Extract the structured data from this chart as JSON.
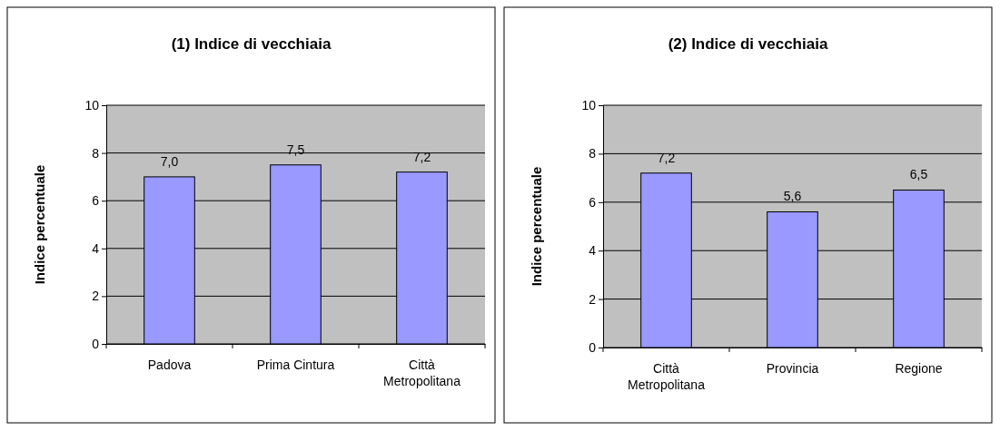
{
  "chart_data": [
    {
      "type": "bar",
      "title": "(1) Indice di vecchiaia",
      "ylabel": "Indice percentuale",
      "categories": [
        "Padova",
        "Prima Cintura",
        "Città Metropolitana"
      ],
      "values": [
        7.0,
        7.5,
        7.2
      ],
      "value_labels": [
        "7,0",
        "7,5",
        "7,2"
      ],
      "color": "#9999ff",
      "ylim": [
        0,
        10
      ],
      "yticks": [
        0,
        2,
        4,
        6,
        8,
        10
      ],
      "grid": "y"
    },
    {
      "type": "bar",
      "title": "(2) Indice di vecchiaia",
      "ylabel": "Indice percentuale",
      "categories": [
        "Città Metropolitana",
        "Provincia",
        "Regione"
      ],
      "values": [
        7.2,
        5.6,
        6.5
      ],
      "value_labels": [
        "7,2",
        "5,6",
        "6,5"
      ],
      "color": "#9999ff",
      "ylim": [
        0,
        10
      ],
      "yticks": [
        0,
        2,
        4,
        6,
        8,
        10
      ],
      "grid": "y"
    }
  ]
}
